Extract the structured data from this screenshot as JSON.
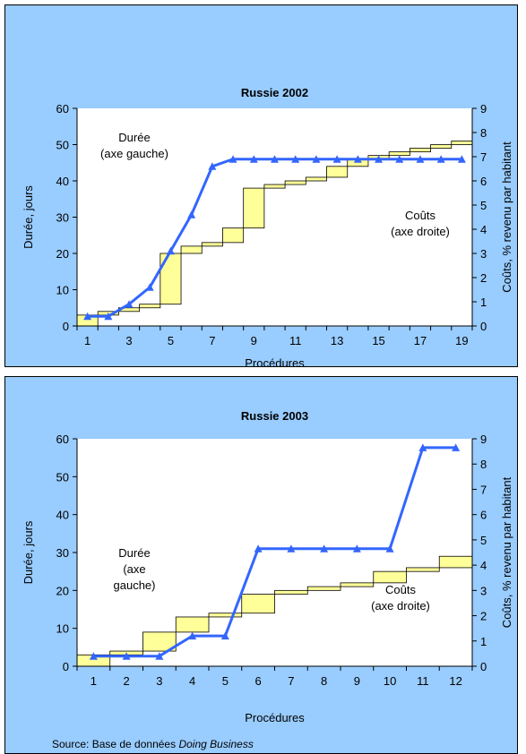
{
  "source": {
    "prefix": "Source: Base de données",
    "italic": "Doing Business"
  },
  "chart_data": [
    {
      "type": "step-line",
      "title": "Russie 2002",
      "xlabel": "Procédures",
      "ylabel_left": "Durée, jours",
      "ylabel_right": "Coûts, % revenu par habitant",
      "ylim_left": [
        0,
        60
      ],
      "ylim_right": [
        0,
        9
      ],
      "yticks_left": [
        "0",
        "10",
        "20",
        "30",
        "40",
        "50",
        "60"
      ],
      "yticks_right": [
        "0",
        "1",
        "2",
        "3",
        "4",
        "5",
        "6",
        "7",
        "8",
        "9"
      ],
      "x_tick_labels": [
        "1",
        "3",
        "5",
        "7",
        "9",
        "11",
        "13",
        "15",
        "17",
        "19"
      ],
      "procedures": [
        1,
        2,
        3,
        4,
        5,
        6,
        7,
        8,
        9,
        10,
        11,
        12,
        13,
        14,
        15,
        16,
        17,
        18,
        19
      ],
      "annotation_left": [
        "Durée",
        "(axe gauche)"
      ],
      "annotation_right": [
        "Coûts",
        "(axe droite)"
      ],
      "series": [
        {
          "kind": "duration_steps",
          "colors": {
            "fill": "#ffff99",
            "stroke": "#000000"
          },
          "values": [
            [
              0,
              3
            ],
            [
              3,
              4
            ],
            [
              4,
              5
            ],
            [
              5,
              6
            ],
            [
              6,
              20
            ],
            [
              20,
              22
            ],
            [
              22,
              23
            ],
            [
              23,
              27
            ],
            [
              27,
              38
            ],
            [
              38,
              39
            ],
            [
              39,
              40
            ],
            [
              40,
              41
            ],
            [
              41,
              44
            ],
            [
              44,
              46
            ],
            [
              46,
              47
            ],
            [
              47,
              48
            ],
            [
              48,
              49
            ],
            [
              49,
              50
            ],
            [
              50,
              51
            ]
          ]
        },
        {
          "kind": "cost_line",
          "color": "#3366ff",
          "values": [
            0.4,
            0.4,
            0.9,
            1.6,
            3.1,
            4.6,
            6.6,
            6.9,
            6.9,
            6.9,
            6.9,
            6.9,
            6.9,
            6.9,
            6.9,
            6.9,
            6.9,
            6.9,
            6.9
          ]
        }
      ]
    },
    {
      "type": "step-line",
      "title": "Russie 2003",
      "xlabel": "Procédures",
      "ylabel_left": "Durée, jours",
      "ylabel_right": "Coûts, % revenu par habitant",
      "ylim_left": [
        0,
        60
      ],
      "ylim_right": [
        0,
        9
      ],
      "yticks_left": [
        "0",
        "10",
        "20",
        "30",
        "40",
        "50",
        "60"
      ],
      "yticks_right": [
        "0",
        "1",
        "2",
        "3",
        "4",
        "5",
        "6",
        "7",
        "8",
        "9"
      ],
      "x_tick_labels": [
        "1",
        "2",
        "3",
        "4",
        "5",
        "6",
        "7",
        "8",
        "9",
        "10",
        "11",
        "12"
      ],
      "procedures": [
        1,
        2,
        3,
        4,
        5,
        6,
        7,
        8,
        9,
        10,
        11,
        12
      ],
      "annotation_left": [
        "Durée",
        "(axe",
        "gauche)"
      ],
      "annotation_right": [
        "Coûts",
        "(axe droite)"
      ],
      "series": [
        {
          "kind": "duration_steps",
          "colors": {
            "fill": "#ffff99",
            "stroke": "#000000"
          },
          "values": [
            [
              0,
              3
            ],
            [
              3,
              4
            ],
            [
              4,
              9
            ],
            [
              9,
              13
            ],
            [
              13,
              14
            ],
            [
              14,
              19
            ],
            [
              19,
              20
            ],
            [
              20,
              21
            ],
            [
              21,
              22
            ],
            [
              22,
              25
            ],
            [
              25,
              26
            ],
            [
              26,
              29
            ]
          ]
        },
        {
          "kind": "cost_line",
          "color": "#3366ff",
          "values": [
            0.4,
            0.4,
            0.4,
            1.2,
            1.2,
            4.65,
            4.65,
            4.65,
            4.65,
            4.65,
            8.65,
            8.65
          ]
        }
      ]
    }
  ]
}
